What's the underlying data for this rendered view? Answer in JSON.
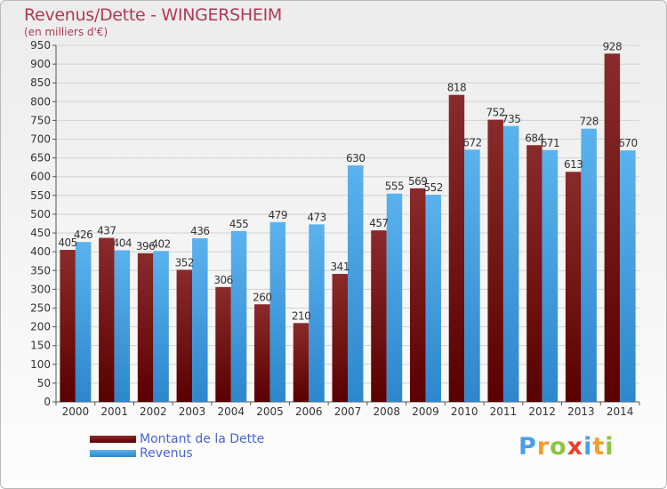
{
  "header": {
    "title": "Revenus/Dette - WINGERSHEIM",
    "subtitle": "(en milliers d'€)"
  },
  "colors": {
    "dette": "#7a1f1f",
    "revenus": "#4aa3e3",
    "title": "#b03a54",
    "legend_text": "#4a64d8"
  },
  "chart_data": {
    "type": "bar",
    "categories": [
      "2000",
      "2001",
      "2002",
      "2003",
      "2004",
      "2005",
      "2006",
      "2007",
      "2008",
      "2009",
      "2010",
      "2011",
      "2012",
      "2013",
      "2014"
    ],
    "series": [
      {
        "name": "Montant de la Dette",
        "values": [
          405,
          437,
          396,
          352,
          306,
          260,
          210,
          341,
          457,
          569,
          818,
          752,
          684,
          613,
          928
        ]
      },
      {
        "name": "Revenus",
        "values": [
          426,
          404,
          402,
          436,
          455,
          479,
          473,
          630,
          555,
          552,
          672,
          735,
          671,
          728,
          670
        ]
      }
    ],
    "ylim": [
      0,
      950
    ],
    "yticks": [
      0,
      50,
      100,
      150,
      200,
      250,
      300,
      350,
      400,
      450,
      500,
      550,
      600,
      650,
      700,
      750,
      800,
      850,
      900,
      950
    ],
    "grid": true,
    "legend_position": "bottom-left"
  },
  "legend": {
    "items": [
      {
        "label": "Montant de la Dette"
      },
      {
        "label": "Revenus"
      }
    ]
  },
  "logo": {
    "text": "Proxiti",
    "chars": [
      "P",
      "r",
      "o",
      "x",
      "i",
      "t",
      "i"
    ]
  }
}
